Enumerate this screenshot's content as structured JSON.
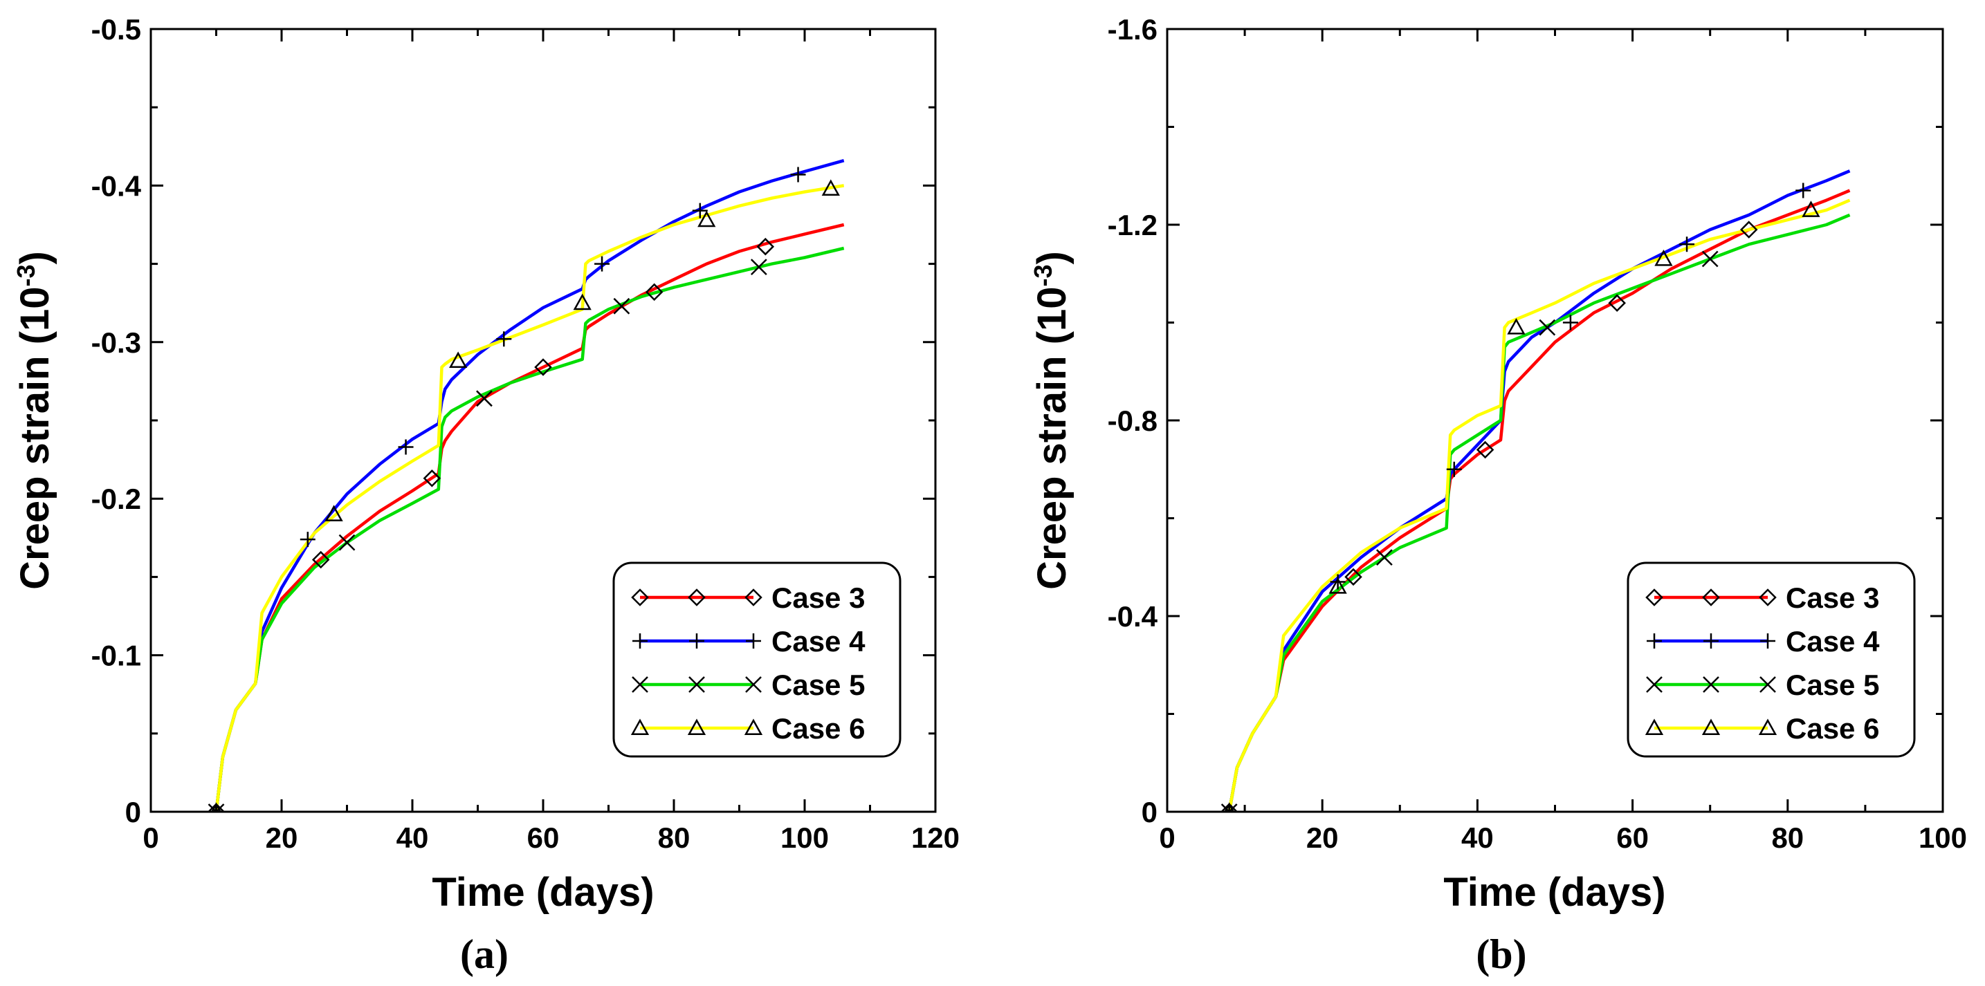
{
  "chart_data": [
    {
      "type": "line",
      "panel_label": "(a)",
      "xlabel": "Time (days)",
      "ylabel_main": "Creep strain (10",
      "ylabel_sup": "-3",
      "ylabel_end": ")",
      "xlim": [
        0,
        120
      ],
      "ylim": [
        0,
        -0.5
      ],
      "xticks": [
        0,
        20,
        40,
        60,
        80,
        100,
        120
      ],
      "xtick_labels": [
        "0",
        "20",
        "40",
        "60",
        "80",
        "100",
        "120"
      ],
      "yticks": [
        0,
        -0.1,
        -0.2,
        -0.3,
        -0.4,
        -0.5
      ],
      "ytick_labels": [
        "0",
        "-0.1",
        "-0.2",
        "-0.3",
        "-0.4",
        "-0.5"
      ],
      "legend_position": "bottom-right",
      "series": [
        {
          "name": "Case 3",
          "color": "#ff0000",
          "marker": "diamond",
          "x": [
            10,
            11,
            13,
            16,
            17,
            20,
            25,
            30,
            35,
            40,
            44,
            44.5,
            45,
            46,
            50,
            55,
            60,
            66,
            66.5,
            67,
            70,
            75,
            80,
            85,
            90,
            95,
            100,
            106
          ],
          "y": [
            0,
            -0.035,
            -0.065,
            -0.082,
            -0.11,
            -0.136,
            -0.158,
            -0.176,
            -0.192,
            -0.205,
            -0.216,
            -0.232,
            -0.237,
            -0.243,
            -0.262,
            -0.274,
            -0.284,
            -0.296,
            -0.308,
            -0.31,
            -0.318,
            -0.33,
            -0.34,
            -0.35,
            -0.358,
            -0.364,
            -0.369,
            -0.375
          ],
          "mx": [
            10,
            26,
            43,
            60,
            77,
            94
          ],
          "my": [
            0,
            -0.161,
            -0.213,
            -0.284,
            -0.332,
            -0.361
          ]
        },
        {
          "name": "Case 4",
          "color": "#0000ff",
          "marker": "plus",
          "x": [
            10,
            11,
            13,
            16,
            17,
            20,
            25,
            30,
            35,
            40,
            44,
            44.5,
            45,
            46,
            50,
            55,
            60,
            66,
            66.5,
            67,
            70,
            75,
            80,
            85,
            90,
            95,
            100,
            106
          ],
          "y": [
            0,
            -0.035,
            -0.065,
            -0.082,
            -0.115,
            -0.143,
            -0.178,
            -0.203,
            -0.222,
            -0.238,
            -0.248,
            -0.262,
            -0.27,
            -0.276,
            -0.292,
            -0.308,
            -0.322,
            -0.334,
            -0.34,
            -0.342,
            -0.352,
            -0.365,
            -0.377,
            -0.387,
            -0.396,
            -0.403,
            -0.409,
            -0.416
          ],
          "mx": [
            10,
            24,
            39,
            54,
            69,
            84,
            99
          ],
          "my": [
            0,
            -0.174,
            -0.233,
            -0.302,
            -0.35,
            -0.384,
            -0.407
          ]
        },
        {
          "name": "Case 5",
          "color": "#00dd00",
          "marker": "cross",
          "x": [
            10,
            11,
            13,
            16,
            17,
            20,
            25,
            30,
            35,
            40,
            44,
            44.5,
            45,
            46,
            50,
            55,
            60,
            66,
            66.5,
            67,
            70,
            75,
            80,
            85,
            90,
            95,
            100,
            106
          ],
          "y": [
            0,
            -0.035,
            -0.065,
            -0.082,
            -0.11,
            -0.133,
            -0.156,
            -0.172,
            -0.186,
            -0.197,
            -0.206,
            -0.246,
            -0.252,
            -0.256,
            -0.265,
            -0.274,
            -0.281,
            -0.289,
            -0.312,
            -0.314,
            -0.321,
            -0.329,
            -0.335,
            -0.34,
            -0.345,
            -0.35,
            -0.354,
            -0.36
          ],
          "mx": [
            10,
            30,
            51,
            72,
            93
          ],
          "my": [
            0,
            -0.172,
            -0.264,
            -0.323,
            -0.348
          ]
        },
        {
          "name": "Case 6",
          "color": "#ffff00",
          "marker": "triangle",
          "x": [
            10,
            11,
            13,
            16,
            17,
            20,
            25,
            30,
            35,
            40,
            44,
            44.5,
            45,
            46,
            50,
            55,
            60,
            66,
            66.5,
            67,
            70,
            75,
            80,
            85,
            90,
            95,
            100,
            106
          ],
          "y": [
            0,
            -0.035,
            -0.065,
            -0.082,
            -0.127,
            -0.15,
            -0.178,
            -0.196,
            -0.211,
            -0.224,
            -0.234,
            -0.284,
            -0.286,
            -0.289,
            -0.295,
            -0.303,
            -0.311,
            -0.321,
            -0.35,
            -0.352,
            -0.358,
            -0.367,
            -0.375,
            -0.381,
            -0.387,
            -0.392,
            -0.396,
            -0.4
          ],
          "mx": [
            10,
            28,
            47,
            66,
            85,
            104
          ],
          "my": [
            0,
            -0.19,
            -0.288,
            -0.325,
            -0.378,
            -0.398
          ]
        }
      ]
    },
    {
      "type": "line",
      "panel_label": "(b)",
      "xlabel": "Time (days)",
      "ylabel_main": "Creep strain (10",
      "ylabel_sup": "-3",
      "ylabel_end": ")",
      "xlim": [
        0,
        100
      ],
      "ylim": [
        0,
        -1.6
      ],
      "xticks": [
        0,
        20,
        40,
        60,
        80,
        100
      ],
      "xtick_labels": [
        "0",
        "20",
        "40",
        "60",
        "80",
        "100"
      ],
      "yticks": [
        0,
        -0.4,
        -0.8,
        -1.2,
        -1.6
      ],
      "ytick_labels": [
        "0",
        "-0.4",
        "-0.8",
        "-1.2",
        "-1.6"
      ],
      "legend_position": "bottom-right",
      "series": [
        {
          "name": "Case 3",
          "color": "#ff0000",
          "marker": "diamond",
          "x": [
            8,
            9,
            11,
            14,
            15,
            20,
            25,
            30,
            36,
            36.5,
            37,
            40,
            43,
            43.5,
            44,
            47,
            50,
            55,
            60,
            65,
            70,
            75,
            80,
            85,
            88
          ],
          "y": [
            0,
            -0.09,
            -0.16,
            -0.235,
            -0.31,
            -0.42,
            -0.5,
            -0.56,
            -0.62,
            -0.68,
            -0.69,
            -0.73,
            -0.76,
            -0.84,
            -0.86,
            -0.91,
            -0.96,
            -1.02,
            -1.06,
            -1.11,
            -1.15,
            -1.19,
            -1.22,
            -1.25,
            -1.27
          ],
          "mx": [
            8,
            24,
            41,
            58,
            75
          ],
          "my": [
            0,
            -0.48,
            -0.74,
            -1.04,
            -1.19
          ]
        },
        {
          "name": "Case 4",
          "color": "#0000ff",
          "marker": "plus",
          "x": [
            8,
            9,
            11,
            14,
            15,
            20,
            25,
            30,
            36,
            36.5,
            37,
            40,
            43,
            43.5,
            44,
            47,
            50,
            55,
            60,
            65,
            70,
            75,
            80,
            85,
            88
          ],
          "y": [
            0,
            -0.09,
            -0.16,
            -0.235,
            -0.33,
            -0.45,
            -0.52,
            -0.58,
            -0.64,
            -0.69,
            -0.7,
            -0.75,
            -0.8,
            -0.9,
            -0.92,
            -0.97,
            -1.0,
            -1.06,
            -1.11,
            -1.15,
            -1.19,
            -1.22,
            -1.26,
            -1.29,
            -1.31
          ],
          "mx": [
            8,
            22,
            37,
            52,
            67,
            82
          ],
          "my": [
            0,
            -0.47,
            -0.7,
            -1.0,
            -1.16,
            -1.27
          ]
        },
        {
          "name": "Case 5",
          "color": "#00dd00",
          "marker": "cross",
          "x": [
            8,
            9,
            11,
            14,
            15,
            20,
            25,
            30,
            36,
            36.5,
            37,
            40,
            43,
            43.5,
            44,
            47,
            50,
            55,
            60,
            65,
            70,
            75,
            80,
            85,
            88
          ],
          "y": [
            0,
            -0.09,
            -0.16,
            -0.235,
            -0.32,
            -0.43,
            -0.49,
            -0.54,
            -0.58,
            -0.73,
            -0.74,
            -0.77,
            -0.8,
            -0.95,
            -0.96,
            -0.98,
            -1.0,
            -1.04,
            -1.07,
            -1.1,
            -1.13,
            -1.16,
            -1.18,
            -1.2,
            -1.22
          ],
          "mx": [
            8,
            28,
            49,
            70
          ],
          "my": [
            0,
            -0.52,
            -0.99,
            -1.13
          ]
        },
        {
          "name": "Case 6",
          "color": "#ffff00",
          "marker": "triangle",
          "x": [
            8,
            9,
            11,
            14,
            15,
            20,
            25,
            30,
            36,
            36.5,
            37,
            40,
            43,
            43.5,
            44,
            47,
            50,
            55,
            60,
            65,
            70,
            75,
            80,
            85,
            88
          ],
          "y": [
            0,
            -0.09,
            -0.16,
            -0.235,
            -0.36,
            -0.46,
            -0.53,
            -0.58,
            -0.62,
            -0.77,
            -0.78,
            -0.81,
            -0.83,
            -0.99,
            -1.0,
            -1.02,
            -1.04,
            -1.08,
            -1.11,
            -1.14,
            -1.17,
            -1.19,
            -1.21,
            -1.23,
            -1.25
          ],
          "mx": [
            8,
            22,
            45,
            64,
            83
          ],
          "my": [
            0,
            -0.46,
            -0.99,
            -1.13,
            -1.23
          ]
        }
      ]
    }
  ]
}
